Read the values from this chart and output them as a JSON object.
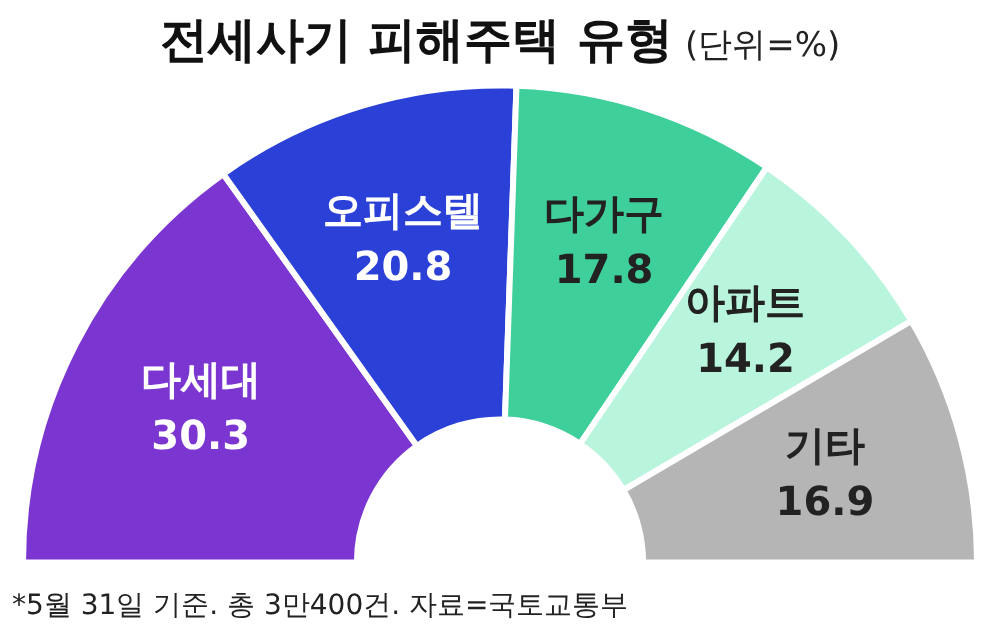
{
  "chart_data": {
    "type": "donut",
    "title": "전세사기 피해주택 유형",
    "subtitle": "(단위=%)",
    "categories": [
      "다세대",
      "오피스텔",
      "다가구",
      "아파트",
      "기타"
    ],
    "values": [
      30.3,
      20.8,
      17.8,
      14.2,
      16.9
    ],
    "colors": [
      "#7b35d0",
      "#2a40d6",
      "#3ecf9a",
      "#b8f5dc",
      "#b5b5b5"
    ],
    "data_labels": true,
    "legend": false,
    "annotations": [
      "*5월 31일 기준. 총 3만400건. 자료=국토교통부"
    ]
  }
}
